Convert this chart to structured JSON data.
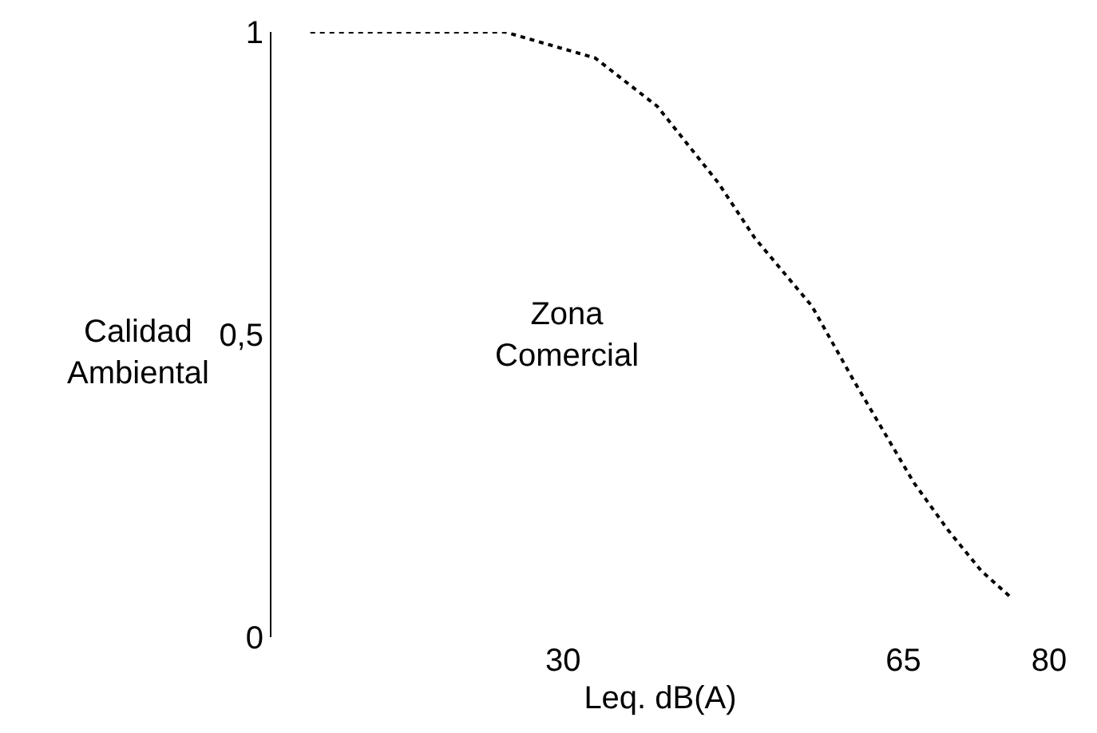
{
  "chart_data": {
    "type": "line",
    "xlabel": "Leq. dB(A)",
    "ylabel": "Calidad Ambiental",
    "x": [
      4,
      24,
      33.3,
      39.7,
      46,
      49.7,
      55.6,
      59.9,
      66.1,
      69.6,
      73,
      76.2
    ],
    "values": [
      1,
      1,
      0.957,
      0.877,
      0.75,
      0.66,
      0.547,
      0.424,
      0.255,
      0.177,
      0.11,
      0.064
    ],
    "color": "#000000",
    "line_style": "dotted",
    "marker": "none",
    "grid": false,
    "xlim": [
      0,
      80
    ],
    "xticks": [
      30,
      65,
      80
    ],
    "ylim": [
      0,
      1
    ],
    "yticks": [
      0,
      {
        "value": 0.5,
        "label": "0,5"
      },
      1
    ],
    "annotations": [
      "Zona Comercial"
    ]
  }
}
